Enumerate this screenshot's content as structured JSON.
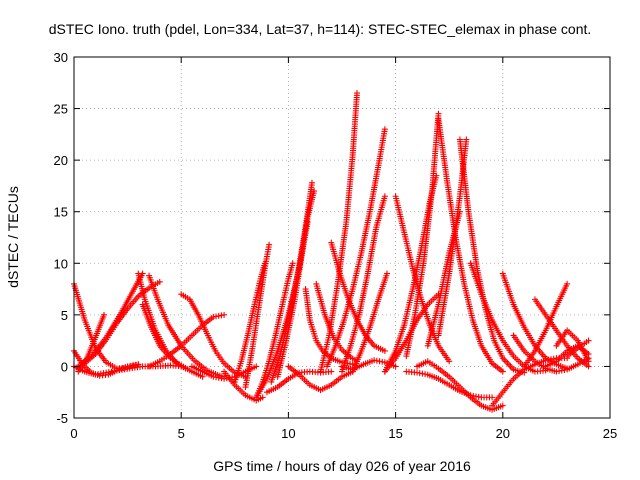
{
  "chart_data": {
    "type": "scatter",
    "title": "dSTEC Iono. truth (pdel, Lon=334, Lat=37, h=114): STEC-STEC_elemax in phase cont.",
    "xlabel": "GPS time / hours of day 026 of year 2016",
    "ylabel": "dSTEC  / TECUs",
    "xlim": [
      0,
      25
    ],
    "ylim": [
      -5,
      30
    ],
    "xticks": [
      0,
      5,
      10,
      15,
      20,
      25
    ],
    "yticks": [
      -5,
      0,
      5,
      10,
      15,
      20,
      25,
      30
    ],
    "grid": true,
    "legend": "none",
    "marker": "plus",
    "color": "#ff0000",
    "series": [
      {
        "x": [
          0.0,
          0.5,
          1.0,
          1.5,
          2.0,
          2.5,
          3.0
        ],
        "y": [
          8.0,
          4.5,
          1.8,
          0.4,
          -0.2,
          -0.1,
          0.2
        ]
      },
      {
        "x": [
          0.0,
          0.4,
          0.8,
          1.2,
          1.6,
          2.0,
          2.5,
          3.0
        ],
        "y": [
          1.5,
          0.2,
          -0.6,
          -0.9,
          -0.8,
          -0.4,
          0.0,
          0.2
        ]
      },
      {
        "x": [
          0.0,
          0.5,
          1.0,
          1.5,
          2.0,
          2.6,
          3.2,
          3.8,
          4.5,
          5.0
        ],
        "y": [
          0.0,
          -0.5,
          -0.8,
          -0.6,
          -0.4,
          -0.2,
          0.0,
          0.0,
          0.1,
          0.0
        ]
      },
      {
        "x": [
          0.2,
          0.6,
          1.0,
          1.4
        ],
        "y": [
          -0.5,
          0.8,
          2.8,
          5.0
        ]
      },
      {
        "x": [
          0.5,
          1.0,
          1.5,
          2.0,
          2.5,
          3.0,
          3.5,
          4.0
        ],
        "y": [
          0.3,
          1.2,
          2.6,
          4.2,
          5.6,
          6.8,
          7.6,
          8.2
        ]
      },
      {
        "x": [
          0.2,
          0.8,
          1.5,
          2.2,
          2.8,
          3.2
        ],
        "y": [
          0.0,
          1.0,
          2.8,
          5.2,
          7.5,
          9.0
        ]
      },
      {
        "x": [
          3.0,
          3.3,
          3.8,
          4.3,
          4.8,
          5.2
        ],
        "y": [
          9.0,
          6.5,
          3.5,
          1.5,
          0.3,
          -0.2
        ]
      },
      {
        "x": [
          3.5,
          3.9,
          4.4,
          5.0,
          5.6,
          6.2,
          6.8,
          7.0
        ],
        "y": [
          8.8,
          6.5,
          4.0,
          2.0,
          0.6,
          -0.4,
          -0.9,
          -1.0
        ]
      },
      {
        "x": [
          3.2,
          3.6,
          4.0,
          4.5,
          5.0,
          5.5,
          6.0
        ],
        "y": [
          6.0,
          3.8,
          2.0,
          0.8,
          0.1,
          -0.5,
          -1.0
        ]
      },
      {
        "x": [
          3.5,
          4.0,
          4.5,
          5.0,
          5.5,
          6.0,
          6.5,
          7.0
        ],
        "y": [
          0.0,
          0.5,
          1.2,
          2.0,
          3.0,
          4.0,
          4.8,
          5.0
        ]
      },
      {
        "x": [
          5.0,
          5.4,
          5.8,
          6.2,
          6.6,
          7.0,
          7.5,
          8.0
        ],
        "y": [
          7.0,
          6.5,
          5.0,
          3.2,
          1.5,
          0.3,
          -0.6,
          -1.0
        ]
      },
      {
        "x": [
          5.5,
          6.0,
          6.5,
          7.0,
          7.5,
          8.0,
          8.5
        ],
        "y": [
          0.0,
          -0.5,
          -1.0,
          -1.2,
          -1.0,
          -0.5,
          0.0
        ]
      },
      {
        "x": [
          7.0,
          7.5,
          8.0,
          8.5,
          8.8
        ],
        "y": [
          -0.5,
          -1.8,
          -2.8,
          -3.3,
          -3.0
        ]
      },
      {
        "x": [
          7.5,
          7.8,
          8.1,
          8.4,
          8.7,
          8.9
        ],
        "y": [
          -1.5,
          0.5,
          3.0,
          5.8,
          8.5,
          10.0
        ]
      },
      {
        "x": [
          8.0,
          8.3,
          8.6,
          8.9,
          9.1
        ],
        "y": [
          -2.0,
          1.5,
          5.5,
          9.5,
          11.8
        ]
      },
      {
        "x": [
          8.5,
          8.8,
          9.1,
          9.4,
          9.7,
          10.0,
          10.2
        ],
        "y": [
          -3.0,
          -1.5,
          0.5,
          3.0,
          5.8,
          8.5,
          10.0
        ]
      },
      {
        "x": [
          8.5,
          9.0,
          9.5,
          10.0,
          10.5,
          10.9
        ],
        "y": [
          -3.0,
          -1.2,
          1.5,
          5.0,
          9.5,
          14.0
        ]
      },
      {
        "x": [
          9.2,
          9.6,
          10.0,
          10.4,
          10.8,
          11.1
        ],
        "y": [
          -1.5,
          1.0,
          4.5,
          8.5,
          13.5,
          17.8
        ]
      },
      {
        "x": [
          9.5,
          9.9,
          10.3,
          10.6,
          10.9,
          11.2
        ],
        "y": [
          -1.0,
          2.5,
          6.5,
          10.5,
          14.5,
          17.0
        ]
      },
      {
        "x": [
          9.0,
          9.5,
          10.0,
          10.5,
          11.0,
          11.5,
          12.0
        ],
        "y": [
          -2.5,
          -2.0,
          -1.2,
          -0.6,
          -0.5,
          -0.6,
          -0.5
        ]
      },
      {
        "x": [
          10.0,
          10.5,
          11.0,
          11.5,
          12.0,
          12.5,
          13.0
        ],
        "y": [
          0.0,
          -0.8,
          -1.8,
          -2.3,
          -1.8,
          -1.0,
          -0.5
        ]
      },
      {
        "x": [
          10.8,
          11.0,
          11.3,
          11.6,
          12.0,
          12.5,
          13.0
        ],
        "y": [
          7.5,
          4.5,
          2.5,
          1.5,
          0.8,
          0.4,
          0.2
        ]
      },
      {
        "x": [
          11.3,
          11.7,
          12.1,
          12.5,
          12.9,
          13.2
        ],
        "y": [
          8.0,
          5.0,
          2.8,
          1.6,
          0.9,
          0.5
        ]
      },
      {
        "x": [
          11.5,
          11.9,
          12.3,
          12.7,
          13.0,
          13.2
        ],
        "y": [
          -0.5,
          3.0,
          8.0,
          14.0,
          20.5,
          26.5
        ]
      },
      {
        "x": [
          11.8,
          12.2,
          12.6,
          13.0,
          13.4,
          13.8,
          14.2,
          14.5
        ],
        "y": [
          0.0,
          2.0,
          4.5,
          7.5,
          11.0,
          15.0,
          19.5,
          23.0
        ]
      },
      {
        "x": [
          12.0,
          12.4,
          12.8,
          13.2,
          13.6,
          14.0,
          14.5
        ],
        "y": [
          12.0,
          9.0,
          6.5,
          4.5,
          3.0,
          2.0,
          1.5
        ]
      },
      {
        "x": [
          12.5,
          12.9,
          13.3,
          13.7,
          14.1,
          14.5
        ],
        "y": [
          -0.5,
          2.0,
          5.0,
          9.0,
          13.5,
          16.5
        ]
      },
      {
        "x": [
          13.0,
          13.4,
          13.8,
          14.2,
          14.6
        ],
        "y": [
          -0.5,
          1.5,
          3.8,
          6.5,
          9.0
        ]
      },
      {
        "x": [
          12.5,
          13.0,
          13.5,
          14.0,
          14.5,
          15.0
        ],
        "y": [
          0.0,
          -0.3,
          0.2,
          0.6,
          0.4,
          0.0
        ]
      },
      {
        "x": [
          14.5,
          15.0,
          15.5,
          16.0,
          16.5,
          17.0
        ],
        "y": [
          -0.5,
          0.8,
          2.5,
          4.5,
          6.0,
          7.0
        ]
      },
      {
        "x": [
          14.5,
          15.0,
          15.4,
          15.8,
          16.2,
          16.6,
          16.9
        ],
        "y": [
          -0.5,
          1.5,
          4.0,
          7.5,
          11.5,
          16.0,
          18.5
        ]
      },
      {
        "x": [
          15.5,
          15.9,
          16.3,
          16.7,
          17.0
        ],
        "y": [
          1.0,
          5.0,
          10.0,
          17.0,
          24.5
        ]
      },
      {
        "x": [
          15.0,
          15.4,
          15.8,
          16.2,
          16.6,
          17.0,
          17.5
        ],
        "y": [
          16.5,
          13.0,
          9.5,
          6.5,
          4.0,
          2.0,
          0.5
        ]
      },
      {
        "x": [
          17.0,
          17.4,
          17.8,
          18.2,
          18.6,
          19.0,
          19.5,
          20.0
        ],
        "y": [
          24.0,
          18.0,
          12.5,
          8.0,
          4.5,
          2.0,
          0.3,
          -0.5
        ]
      },
      {
        "x": [
          16.5,
          17.0,
          17.5,
          18.0
        ],
        "y": [
          2.0,
          6.0,
          11.0,
          15.0
        ]
      },
      {
        "x": [
          17.0,
          17.5,
          18.0,
          18.3
        ],
        "y": [
          3.0,
          9.0,
          16.5,
          22.0
        ]
      },
      {
        "x": [
          18.0,
          18.4,
          18.8,
          19.2,
          19.6,
          20.0,
          20.5,
          21.0
        ],
        "y": [
          22.0,
          15.0,
          9.5,
          5.5,
          2.5,
          0.8,
          -0.3,
          -0.6
        ]
      },
      {
        "x": [
          16.0,
          16.5,
          17.0,
          17.5,
          18.0,
          18.5,
          19.0,
          19.5,
          20.0
        ],
        "y": [
          0.0,
          0.5,
          -0.2,
          -1.0,
          -2.0,
          -3.0,
          -3.8,
          -4.2,
          -3.8
        ]
      },
      {
        "x": [
          15.5,
          16.0,
          16.5,
          17.0,
          17.5,
          18.0,
          18.5,
          19.0,
          19.5
        ],
        "y": [
          -0.5,
          -0.6,
          -0.8,
          -1.2,
          -1.8,
          -2.4,
          -2.8,
          -3.0,
          -3.0
        ]
      },
      {
        "x": [
          18.5,
          19.0,
          19.5,
          20.0,
          20.5,
          21.0,
          21.5,
          22.0
        ],
        "y": [
          10.0,
          7.0,
          4.5,
          2.5,
          1.0,
          0.0,
          -0.5,
          -0.4
        ]
      },
      {
        "x": [
          19.5,
          20.0,
          20.5,
          21.0,
          21.5,
          22.0,
          22.5,
          23.0
        ],
        "y": [
          -3.8,
          -2.5,
          -1.2,
          -0.3,
          0.2,
          0.6,
          0.8,
          0.8
        ]
      },
      {
        "x": [
          20.0,
          20.5,
          21.0,
          21.5,
          22.0,
          22.5,
          23.0
        ],
        "y": [
          9.0,
          6.0,
          3.8,
          2.0,
          0.8,
          0.2,
          -0.2
        ]
      },
      {
        "x": [
          20.5,
          21.0,
          21.5,
          22.0,
          22.5,
          23.0,
          23.5,
          24.0
        ],
        "y": [
          3.0,
          1.5,
          0.5,
          -0.2,
          -0.5,
          -0.3,
          0.2,
          0.8
        ]
      },
      {
        "x": [
          21.5,
          22.0,
          22.5,
          23.0,
          23.5,
          24.0
        ],
        "y": [
          6.5,
          5.0,
          3.5,
          2.0,
          0.8,
          0.0
        ]
      },
      {
        "x": [
          21.0,
          21.5,
          22.0,
          22.5,
          23.0
        ],
        "y": [
          0.0,
          1.5,
          3.5,
          5.8,
          8.0
        ]
      },
      {
        "x": [
          22.5,
          23.0,
          23.5,
          24.0
        ],
        "y": [
          2.0,
          3.5,
          2.5,
          0.5
        ]
      },
      {
        "x": [
          22.0,
          22.5,
          23.0,
          23.5,
          24.0
        ],
        "y": [
          0.0,
          0.5,
          1.5,
          2.0,
          1.2
        ]
      },
      {
        "x": [
          23.0,
          23.5,
          24.0
        ],
        "y": [
          1.0,
          1.8,
          2.5
        ]
      }
    ]
  }
}
